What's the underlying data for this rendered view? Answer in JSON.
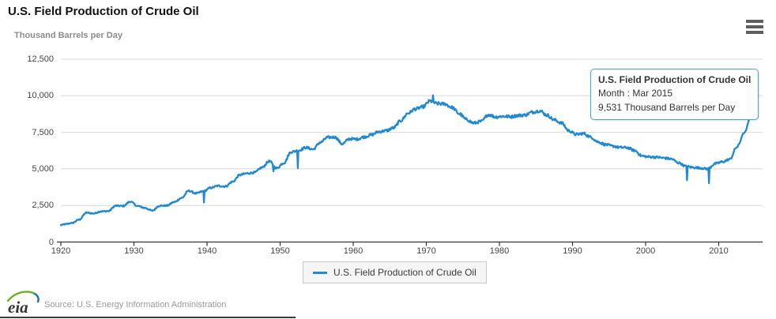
{
  "header": {
    "title": "U.S. Field Production of Crude Oil",
    "subtitle": "Thousand Barrels per Day"
  },
  "chart_data": {
    "type": "line",
    "title": "U.S. Field Production of Crude Oil",
    "ylabel": "Thousand Barrels per Day",
    "xlabel": "",
    "resolution": "monthly",
    "xlim": [
      1920,
      2016
    ],
    "ylim": [
      0,
      12500
    ],
    "grid": true,
    "legend_position": "bottom-center",
    "x_tick_labels": [
      "1920",
      "1930",
      "1940",
      "1950",
      "1960",
      "1970",
      "1980",
      "1990",
      "2000",
      "2010"
    ],
    "x_ticks": [
      1920,
      1930,
      1940,
      1950,
      1960,
      1970,
      1980,
      1990,
      2000,
      2010
    ],
    "y_ticks": [
      0,
      2500,
      5000,
      7500,
      10000,
      12500
    ],
    "y_tick_labels": [
      "0",
      "2,500",
      "5,000",
      "7,500",
      "10,000",
      "12,500"
    ],
    "series": [
      {
        "name": "U.S. Field Production of Crude Oil",
        "color": "#2089cf",
        "x": [
          1920,
          1921,
          1922,
          1923,
          1924,
          1925,
          1926,
          1927,
          1928,
          1929,
          1930,
          1931,
          1932,
          1933,
          1934,
          1935,
          1936,
          1937,
          1938,
          1939,
          1940,
          1941,
          1942,
          1943,
          1944,
          1945,
          1946,
          1947,
          1948,
          1949,
          1950,
          1951,
          1952,
          1953,
          1954,
          1955,
          1956,
          1957,
          1958,
          1959,
          1960,
          1961,
          1962,
          1963,
          1964,
          1965,
          1966,
          1967,
          1968,
          1969,
          1970,
          1971,
          1972,
          1973,
          1974,
          1975,
          1976,
          1977,
          1978,
          1979,
          1980,
          1981,
          1982,
          1983,
          1984,
          1985,
          1986,
          1987,
          1988,
          1989,
          1990,
          1991,
          1992,
          1993,
          1994,
          1995,
          1996,
          1997,
          1998,
          1999,
          2000,
          2001,
          2002,
          2003,
          2004,
          2005,
          2006,
          2007,
          2008,
          2009,
          2010,
          2011,
          2012,
          2013,
          2014,
          2015.17
        ],
        "values": [
          1214,
          1294,
          1530,
          2007,
          1955,
          2092,
          2114,
          2477,
          2463,
          2760,
          2460,
          2332,
          2145,
          2481,
          2488,
          2730,
          3001,
          3500,
          3327,
          3466,
          3707,
          3842,
          3799,
          4125,
          4584,
          4695,
          4750,
          5088,
          5520,
          5046,
          5407,
          6158,
          6256,
          6458,
          6342,
          6807,
          7151,
          7170,
          6710,
          7054,
          7035,
          7183,
          7332,
          7542,
          7614,
          7804,
          8295,
          8810,
          9096,
          9238,
          9637,
          9463,
          9441,
          9208,
          8774,
          8375,
          8132,
          8245,
          8707,
          8552,
          8597,
          8572,
          8649,
          8688,
          8879,
          8971,
          8680,
          8349,
          8140,
          7613,
          7355,
          7417,
          7171,
          6847,
          6662,
          6560,
          6465,
          6452,
          6252,
          5881,
          5822,
          5801,
          5746,
          5681,
          5419,
          5178,
          5102,
          5064,
          5000,
          5353,
          5479,
          5653,
          6496,
          7467,
          8759,
          9531
        ],
        "monthly_anomalies": [
          {
            "x": 1939.6,
            "value": 2700
          },
          {
            "x": 1949.1,
            "value": 4830
          },
          {
            "x": 1952.4,
            "value": 5050
          },
          {
            "x": 1970.9,
            "value": 10040
          },
          {
            "x": 2005.7,
            "value": 4230
          },
          {
            "x": 2008.7,
            "value": 4030
          }
        ]
      }
    ]
  },
  "tooltip": {
    "title": "U.S. Field Production of Crude Oil",
    "month_line": "Month : Mar 2015",
    "value_line": "9,531 Thousand Barrels per Day",
    "border_color": "#46a5de"
  },
  "legend": {
    "label": "U.S. Field Production of Crude Oil",
    "line_color": "#2089cf"
  },
  "footer": {
    "logo_text": "eia",
    "source": "Source: U.S. Energy Information Administration"
  },
  "colors": {
    "line": "#2089cf",
    "gridline": "#d8d8d8",
    "axis": "#333333"
  }
}
